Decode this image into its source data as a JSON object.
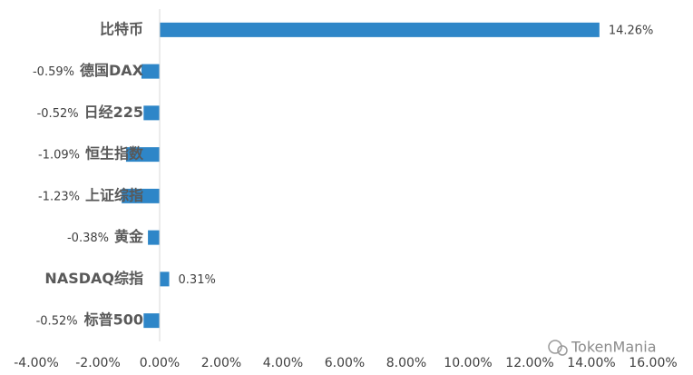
{
  "chart_data": {
    "type": "bar",
    "orientation": "horizontal",
    "categories": [
      "比特币",
      "德国DAX",
      "日经225",
      "恒生指数",
      "上证综指",
      "黄金",
      "NASDAQ综指",
      "标普500"
    ],
    "values": [
      14.26,
      -0.59,
      -0.52,
      -1.09,
      -1.23,
      -0.38,
      0.31,
      -0.52
    ],
    "value_labels": [
      "14.26%",
      "-0.59%",
      "-0.52%",
      "-1.09%",
      "-1.23%",
      "-0.38%",
      "0.31%",
      "-0.52%"
    ],
    "color": "#2e86c8",
    "xlim": [
      -4,
      16
    ],
    "xticks": [
      {
        "value": -4,
        "label": "-4.00%"
      },
      {
        "value": -2,
        "label": "-2.00%"
      },
      {
        "value": 0,
        "label": "0.00%"
      },
      {
        "value": 2,
        "label": "2.00%"
      },
      {
        "value": 4,
        "label": "4.00%"
      },
      {
        "value": 6,
        "label": "6.00%"
      },
      {
        "value": 8,
        "label": "8.00%"
      },
      {
        "value": 10,
        "label": "10.00%"
      },
      {
        "value": 12,
        "label": "12.00%"
      },
      {
        "value": 14,
        "label": "14.00%"
      },
      {
        "value": 16,
        "label": "16.00%"
      }
    ],
    "grid": false,
    "watermark": "TokenMania"
  }
}
